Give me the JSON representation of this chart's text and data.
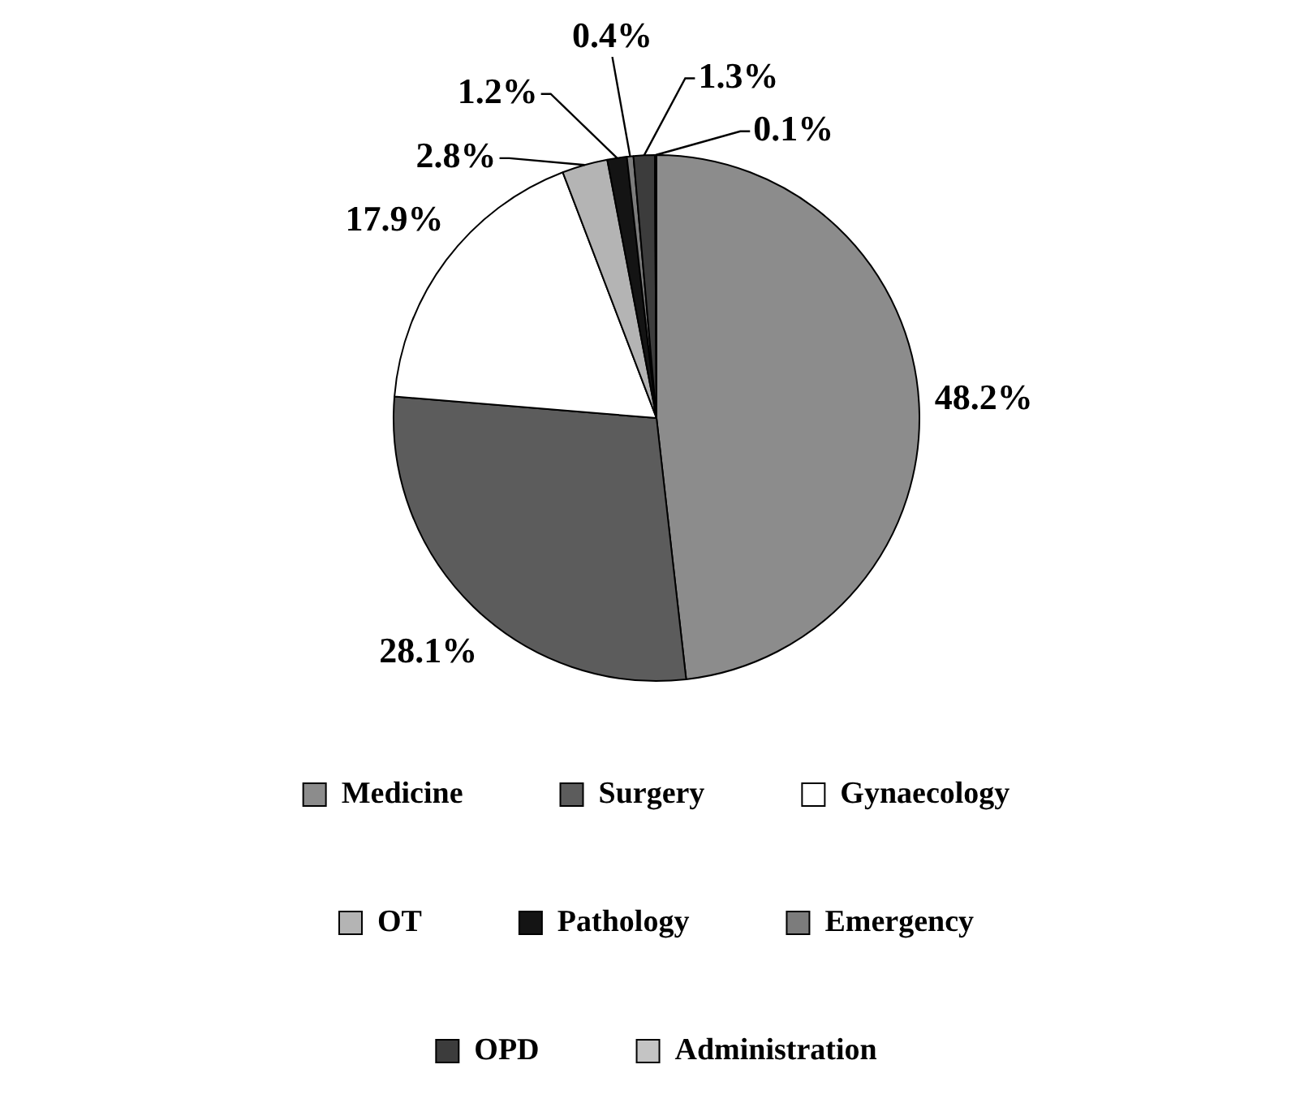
{
  "chart_data": {
    "type": "pie",
    "categories": [
      "Medicine",
      "Surgery",
      "Gynaecology",
      "OT",
      "Pathology",
      "Emergency",
      "OPD",
      "Administration"
    ],
    "values": [
      48.2,
      28.1,
      17.9,
      2.8,
      1.2,
      0.4,
      1.3,
      0.1
    ],
    "colors": [
      "#8c8c8c",
      "#5c5c5c",
      "#ffffff",
      "#b4b4b4",
      "#141414",
      "#7c7c7c",
      "#3c3c3c",
      "#c4c4c4"
    ],
    "value_labels": [
      "48.2%",
      "28.1%",
      "17.9%",
      "2.8%",
      "1.2%",
      "0.4%",
      "1.3%",
      "0.1%"
    ],
    "legend": "bottom"
  }
}
